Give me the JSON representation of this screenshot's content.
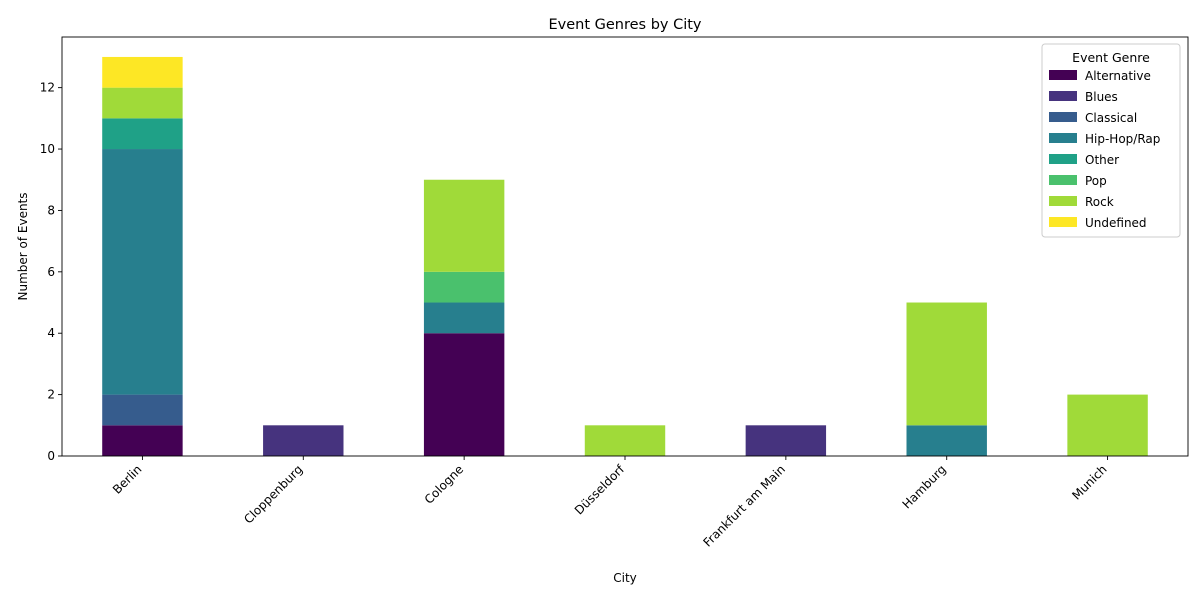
{
  "chart_data": {
    "type": "bar",
    "stacked": true,
    "title": "Event Genres by City",
    "xlabel": "City",
    "ylabel": "Number of Events",
    "ylim": [
      0,
      13.65
    ],
    "yticks": [
      0,
      2,
      4,
      6,
      8,
      10,
      12
    ],
    "grid": false,
    "legend_title": "Event Genre",
    "legend_position": "top-right",
    "categories": [
      "Berlin",
      "Cloppenburg",
      "Cologne",
      "Düsseldorf",
      "Frankfurt am Main",
      "Hamburg",
      "Munich"
    ],
    "series": [
      {
        "name": "Alternative",
        "color": "#440154",
        "values": [
          1,
          0,
          4,
          0,
          0,
          0,
          0
        ]
      },
      {
        "name": "Blues",
        "color": "#46337e",
        "values": [
          0,
          1,
          0,
          0,
          1,
          0,
          0
        ]
      },
      {
        "name": "Classical",
        "color": "#365c8d",
        "values": [
          1,
          0,
          0,
          0,
          0,
          0,
          0
        ]
      },
      {
        "name": "Hip-Hop/Rap",
        "color": "#277f8e",
        "values": [
          8,
          0,
          1,
          0,
          0,
          1,
          0
        ]
      },
      {
        "name": "Other",
        "color": "#1fa187",
        "values": [
          1,
          0,
          0,
          0,
          0,
          0,
          0
        ]
      },
      {
        "name": "Pop",
        "color": "#4ac16d",
        "values": [
          0,
          0,
          1,
          0,
          0,
          0,
          0
        ]
      },
      {
        "name": "Rock",
        "color": "#a0da39",
        "values": [
          1,
          0,
          3,
          1,
          0,
          4,
          2
        ]
      },
      {
        "name": "Undefined",
        "color": "#fde725",
        "values": [
          1,
          0,
          0,
          0,
          0,
          0,
          0
        ]
      }
    ]
  }
}
